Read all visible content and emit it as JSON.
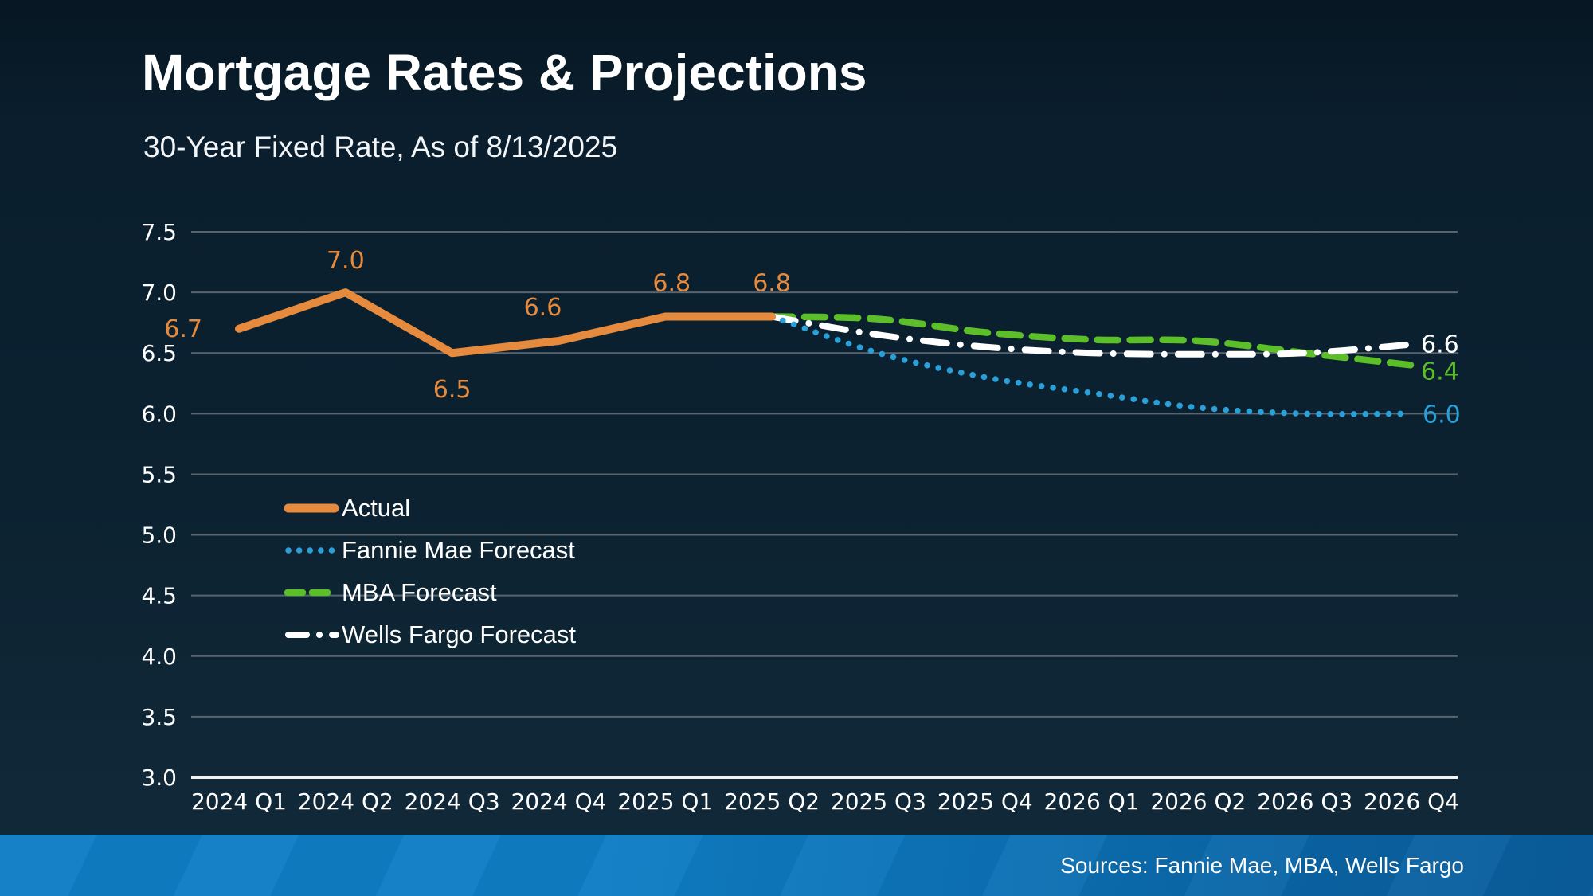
{
  "header": {
    "title": "Mortgage Rates & Projections",
    "subtitle": "30-Year Fixed Rate, As of 8/13/2025"
  },
  "footer": {
    "sources": "Sources: Fannie Mae, MBA, Wells Fargo"
  },
  "colors": {
    "background": "#0c2231",
    "gridline": "#59646e",
    "axis_line": "#f2f5f7",
    "tick_text": "#ffffff",
    "accent_orange": "#e68a3d",
    "accent_blue": "#29a0d8",
    "accent_green": "#5cbe28",
    "accent_white": "#ffffff",
    "footer_bar_blue": "#0e7dc4"
  },
  "chart_data": {
    "type": "line",
    "title": "Mortgage Rates & Projections",
    "subtitle": "30-Year Fixed Rate, As of 8/13/2025",
    "categories": [
      "2024 Q1",
      "2024 Q2",
      "2024 Q3",
      "2024 Q4",
      "2025 Q1",
      "2025 Q2",
      "2025 Q3",
      "2025 Q4",
      "2026 Q1",
      "2026 Q2",
      "2026 Q3",
      "2026 Q4"
    ],
    "xlabel": "",
    "ylabel": "",
    "ylim": [
      3.0,
      7.5
    ],
    "ytick_step": 0.5,
    "grid": true,
    "legend_position": "middle-left",
    "series": [
      {
        "name": "Actual",
        "color": "#e68a3d",
        "line_style": "solid",
        "start_index": 0,
        "values": [
          6.7,
          7.0,
          6.5,
          6.6,
          6.8,
          6.8
        ],
        "point_labels": [
          "6.7",
          "7.0",
          "6.5",
          "6.6",
          "6.8",
          "6.8"
        ],
        "point_label_offsets": [
          [
            -46,
            10
          ],
          [
            0,
            -30
          ],
          [
            0,
            56
          ],
          [
            -20,
            -32
          ],
          [
            8,
            -32
          ],
          [
            0,
            -32
          ]
        ]
      },
      {
        "name": "Fannie Mae Forecast",
        "color": "#29a0d8",
        "line_style": "dotted",
        "start_index": 5,
        "values": [
          6.8,
          6.5,
          6.3,
          6.17,
          6.05,
          6.0,
          6.0
        ],
        "end_label": "6.0",
        "end_label_offset": [
          14,
          11
        ]
      },
      {
        "name": "MBA Forecast",
        "color": "#5cbe28",
        "line_style": "dashed",
        "start_index": 5,
        "values": [
          6.8,
          6.78,
          6.67,
          6.61,
          6.6,
          6.5,
          6.4
        ],
        "end_label": "6.4",
        "end_label_offset": [
          12,
          18
        ]
      },
      {
        "name": "Wells Fargo Forecast",
        "color": "#ffffff",
        "line_style": "dashdot",
        "start_index": 5,
        "values": [
          6.8,
          6.65,
          6.55,
          6.5,
          6.49,
          6.5,
          6.57
        ],
        "end_label": "6.6",
        "end_label_offset": [
          12,
          10
        ]
      }
    ]
  }
}
